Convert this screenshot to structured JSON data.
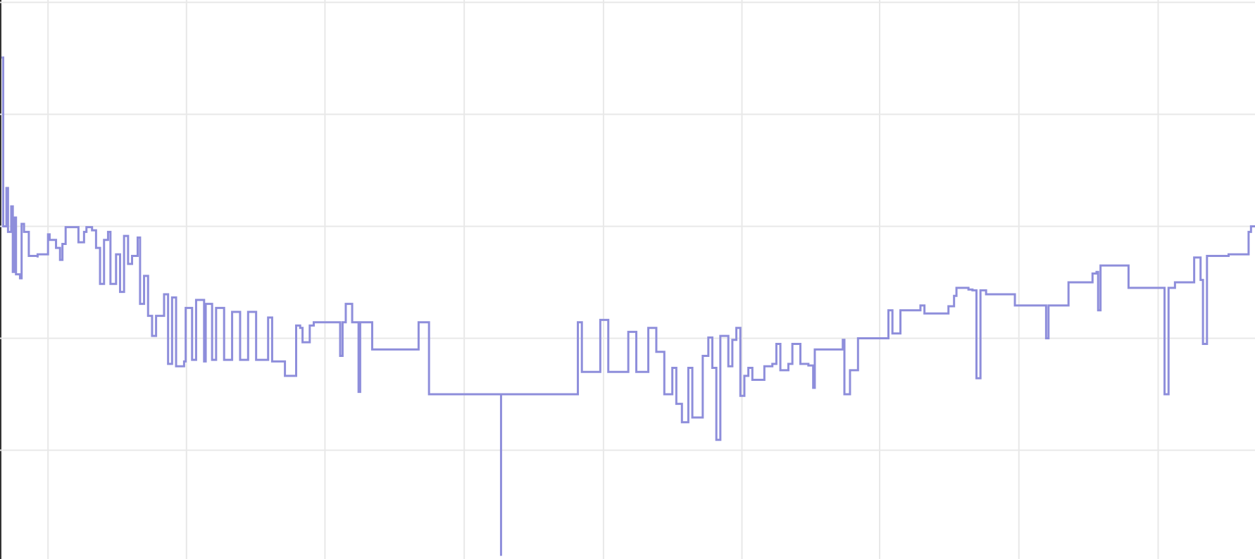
{
  "chart_data": {
    "type": "line",
    "step": "post",
    "grid": true,
    "xlim": [
      0,
      1568
    ],
    "ylim": [
      4,
      703
    ],
    "xticks": [
      60,
      233,
      406,
      580,
      754,
      927,
      1099,
      1273,
      1447
    ],
    "yticks": [
      140,
      280,
      420,
      560,
      700
    ],
    "series": [
      {
        "color": "#8e8edb",
        "x": [
          2,
          4,
          4,
          8,
          10,
          14,
          16,
          18,
          20,
          25,
          27,
          30,
          35,
          36,
          47,
          47,
          57,
          60,
          62,
          68,
          70,
          75,
          78,
          82,
          95,
          98,
          105,
          108,
          115,
          120,
          125,
          130,
          135,
          138,
          145,
          150,
          155,
          160,
          165,
          172,
          175,
          180,
          185,
          190,
          195,
          200,
          205,
          210,
          215,
          220,
          230,
          232,
          240,
          245,
          255,
          257,
          265,
          270,
          280,
          290,
          300,
          310,
          320,
          335,
          340,
          355,
          356,
          370,
          370,
          375,
          378,
          386,
          387,
          392,
          420,
          425,
          428,
          432,
          440,
          448,
          450,
          465,
          465,
          523,
          523,
          536,
          536,
          626,
          626,
          626,
          722,
          722,
          727,
          750,
          750,
          760,
          785,
          795,
          810,
          820,
          830,
          840,
          845,
          852,
          858,
          860,
          865,
          875,
          878,
          885,
          890,
          895,
          900,
          910,
          915,
          920,
          925,
          930,
          935,
          940,
          950,
          955,
          965,
          970,
          975,
          985,
          990,
          1000,
          1010,
          1016,
          1018,
          1050,
          1053,
          1055,
          1062,
          1062,
          1070,
          1072,
          1105,
          1110,
          1115,
          1125,
          1125,
          1140,
          1150,
          1155,
          1180,
          1185,
          1192,
          1195,
          1210,
          1215,
          1220,
          1225,
          1232,
          1265,
          1268,
          1300,
          1307,
          1310,
          1335,
          1335,
          1350,
          1360,
          1365,
          1370,
          1372,
          1375,
          1400,
          1410,
          1450,
          1455,
          1460,
          1468,
          1468,
          1492,
          1492,
          1497,
          1500,
          1503,
          1508,
          1530,
          1535,
          1557,
          1560,
          1563,
          1568
        ],
        "values": [
          631,
          631,
          420,
          468,
          413,
          445,
          363,
          431,
          360,
          355,
          423,
          413,
          413,
          383,
          381,
          385,
          385,
          410,
          403,
          403,
          393,
          378,
          398,
          419,
          419,
          400,
          413,
          419,
          415,
          393,
          348,
          403,
          413,
          348,
          385,
          338,
          408,
          373,
          383,
          406,
          323,
          358,
          308,
          283,
          308,
          308,
          335,
          248,
          331,
          245,
          251,
          318,
          253,
          328,
          251,
          323,
          253,
          318,
          253,
          313,
          253,
          313,
          253,
          306,
          251,
          251,
          233,
          233,
          296,
          293,
          275,
          275,
          296,
          300,
          300,
          258,
          300,
          323,
          300,
          213,
          300,
          300,
          266,
          266,
          300,
          300,
          210,
          210,
          8,
          210,
          210,
          300,
          238,
          238,
          303,
          238,
          288,
          238,
          293,
          263,
          210,
          243,
          198,
          175,
          175,
          243,
          181,
          181,
          258,
          281,
          243,
          153,
          283,
          245,
          278,
          293,
          208,
          233,
          243,
          228,
          228,
          245,
          248,
          273,
          240,
          248,
          273,
          248,
          246,
          218,
          266,
          266,
          278,
          210,
          210,
          240,
          240,
          280,
          280,
          315,
          286,
          286,
          315,
          315,
          321,
          311,
          311,
          320,
          333,
          343,
          341,
          340,
          230,
          340,
          335,
          335,
          321,
          321,
          280,
          321,
          321,
          350,
          350,
          350,
          361,
          363,
          315,
          371,
          371,
          343,
          343,
          210,
          343,
          343,
          350,
          350,
          381,
          381,
          353,
          273,
          383,
          383,
          385,
          385,
          413,
          420,
          420
        ]
      }
    ]
  }
}
